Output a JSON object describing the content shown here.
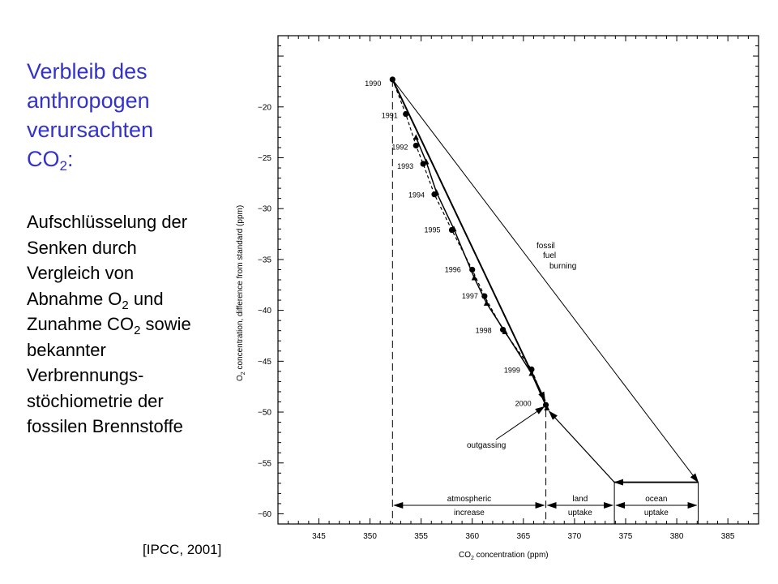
{
  "heading": {
    "line1": "Verbleib des",
    "line2": "anthropogen",
    "line3": "verursachten",
    "line4_main": "CO",
    "line4_sub": "2",
    "line4_end": ":"
  },
  "description": {
    "l1": "Aufschlüsselung der",
    "l2": "Senken durch",
    "l3": "Vergleich von",
    "l4a": "Abnahme O",
    "l4sub": "2",
    "l4b": " und",
    "l5a": "Zunahme CO",
    "l5sub": "2",
    "l5b": " sowie",
    "l6": "bekannter",
    "l7": "Verbrennungs-",
    "l8": "stöchiometrie der",
    "l9": "fossilen Brennstoffe"
  },
  "source": "[IPCC, 2001]",
  "chart_data": {
    "type": "scatter",
    "xlabel_main": "CO",
    "xlabel_sub": "2",
    "xlabel_end": " concentration (ppm)",
    "ylabel_main": "O",
    "ylabel_sub": "2",
    "ylabel_end": " concentration, difference from standard (ppm)",
    "xlim": [
      341,
      388
    ],
    "ylim": [
      -61,
      -13
    ],
    "x_ticks": [
      345,
      350,
      355,
      360,
      365,
      370,
      375,
      380,
      385
    ],
    "y_ticks": [
      -20,
      -25,
      -30,
      -35,
      -40,
      -45,
      -50,
      -55,
      -60
    ],
    "x_tick_labels": [
      "345",
      "350",
      "355",
      "360",
      "365",
      "370",
      "375",
      "380",
      "385"
    ],
    "y_tick_labels": [
      "−20",
      "−25",
      "−30",
      "−35",
      "−40",
      "−45",
      "−50",
      "−55",
      "−60"
    ],
    "series": [
      {
        "marker": "circle",
        "x": [
          352.2,
          353.5,
          354.5,
          355.2,
          356.3,
          358.0,
          360.0,
          361.2,
          363.0,
          365.8,
          367.2
        ],
        "y": [
          -17.3,
          -20.7,
          -23.8,
          -25.6,
          -28.6,
          -32.1,
          -36.0,
          -38.6,
          -41.9,
          -45.8,
          -49.3
        ]
      },
      {
        "marker": "triangle",
        "x": [
          354.5,
          355.5,
          356.5,
          358.2,
          360.2,
          361.4,
          363.2,
          365.8,
          367.3
        ],
        "y": [
          -23.0,
          -25.4,
          -28.4,
          -32.0,
          -36.8,
          -39.3,
          -42.1,
          -46.2,
          -49.6
        ]
      }
    ],
    "years": [
      "1990",
      "1991",
      "1992",
      "1993",
      "1994",
      "1995",
      "1996",
      "1997",
      "1998",
      "1999",
      "2000"
    ],
    "annotations": {
      "fossil_l1": "fossil",
      "fossil_l2": "fuel",
      "fossil_l3": "burning",
      "outgassing": "outgassing",
      "atm_l1": "atmospheric",
      "atm_l2": "increase",
      "land_l1": "land",
      "land_l2": "uptake",
      "ocean_l1": "ocean",
      "ocean_l2": "uptake"
    },
    "vectors": {
      "start": [
        352.2,
        -17.3
      ],
      "fossil_end": [
        382.1,
        -56.9
      ],
      "observed_end": [
        367.2,
        -49.3
      ],
      "ocean_corner": [
        373.9,
        -56.9
      ],
      "land_end": [
        367.2,
        -49.6
      ]
    },
    "grid": false
  }
}
